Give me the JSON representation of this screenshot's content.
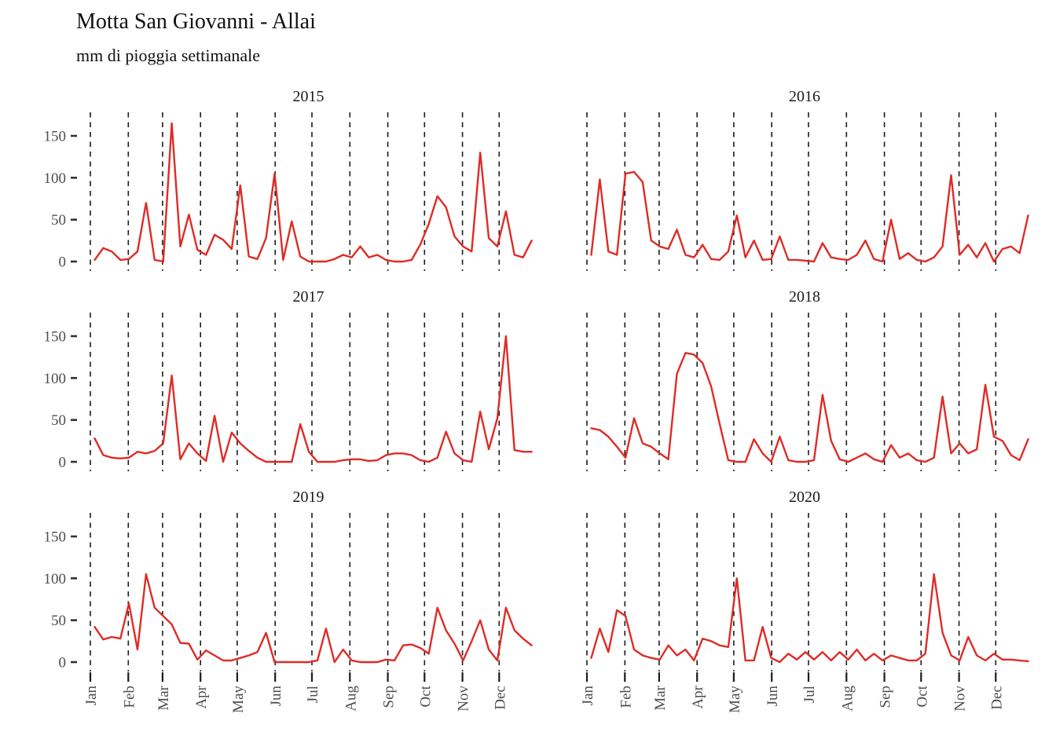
{
  "header": {
    "title": "Motta San Giovanni - Allai",
    "subtitle": "mm di pioggia settimanale"
  },
  "chart_data": {
    "type": "line",
    "title": "Motta San Giovanni - Allai",
    "subtitle": "mm di pioggia settimanale",
    "ylabel": "",
    "xlabel": "",
    "unit": "mm per week",
    "grid": "dashed vertical line at each month start",
    "legend": "none",
    "ylim": [
      0,
      170
    ],
    "y_ticks": [
      0,
      50,
      100,
      150
    ],
    "x_tick_labels": [
      "Jan",
      "Feb",
      "Mar",
      "Apr",
      "May",
      "Jun",
      "Jul",
      "Aug",
      "Sep",
      "Oct",
      "Nov",
      "Dec"
    ],
    "month_start_days": [
      0,
      31,
      59,
      90,
      120,
      151,
      181,
      212,
      243,
      273,
      304,
      334
    ],
    "colors": {
      "line": "#DE2C26",
      "grid": "#1b1b1b",
      "axis_text": "#4d4d4d",
      "tick": "#333333",
      "facet_title": "#1a1a1a",
      "background": "#ffffff"
    },
    "facets": [
      {
        "year": "2015",
        "values": [
          2,
          16,
          12,
          2,
          3,
          12,
          70,
          2,
          0,
          165,
          18,
          56,
          14,
          8,
          32,
          26,
          15,
          91,
          6,
          3,
          28,
          105,
          2,
          48,
          6,
          0,
          0,
          0,
          3,
          8,
          5,
          18,
          5,
          8,
          2,
          0,
          0,
          2,
          20,
          45,
          78,
          65,
          30,
          18,
          12,
          130,
          28,
          18,
          60,
          8,
          5,
          25
        ]
      },
      {
        "year": "2016",
        "values": [
          8,
          98,
          12,
          8,
          105,
          107,
          95,
          25,
          18,
          15,
          38,
          8,
          5,
          20,
          3,
          2,
          12,
          55,
          5,
          25,
          2,
          3,
          30,
          2,
          2,
          1,
          0,
          22,
          5,
          3,
          2,
          8,
          25,
          3,
          0,
          50,
          3,
          10,
          2,
          0,
          5,
          18,
          103,
          8,
          20,
          5,
          22,
          0,
          15,
          18,
          10,
          55
        ]
      },
      {
        "year": "2017",
        "values": [
          28,
          8,
          5,
          4,
          5,
          12,
          10,
          13,
          22,
          103,
          3,
          22,
          10,
          1,
          55,
          0,
          35,
          22,
          13,
          5,
          0,
          0,
          0,
          0,
          45,
          12,
          0,
          0,
          0,
          2,
          3,
          3,
          1,
          2,
          8,
          10,
          10,
          8,
          2,
          0,
          5,
          36,
          10,
          2,
          0,
          60,
          15,
          52,
          150,
          14,
          12,
          12
        ]
      },
      {
        "year": "2018",
        "values": [
          40,
          38,
          30,
          18,
          5,
          52,
          22,
          18,
          10,
          3,
          105,
          130,
          128,
          118,
          90,
          45,
          2,
          0,
          0,
          27,
          10,
          0,
          30,
          2,
          0,
          0,
          2,
          80,
          25,
          3,
          0,
          5,
          10,
          3,
          0,
          20,
          5,
          10,
          2,
          0,
          5,
          78,
          10,
          22,
          10,
          15,
          92,
          30,
          25,
          8,
          2,
          27
        ]
      },
      {
        "year": "2019",
        "values": [
          42,
          27,
          30,
          28,
          70,
          15,
          105,
          65,
          55,
          45,
          23,
          22,
          3,
          14,
          8,
          2,
          2,
          5,
          8,
          12,
          35,
          0,
          0,
          0,
          0,
          0,
          2,
          40,
          0,
          15,
          2,
          0,
          0,
          0,
          3,
          2,
          20,
          21,
          17,
          10,
          65,
          38,
          22,
          2,
          25,
          50,
          15,
          2,
          65,
          38,
          28,
          20
        ]
      },
      {
        "year": "2020",
        "values": [
          5,
          40,
          12,
          62,
          55,
          15,
          8,
          5,
          3,
          20,
          8,
          15,
          2,
          28,
          25,
          20,
          18,
          100,
          2,
          2,
          42,
          5,
          0,
          10,
          3,
          12,
          3,
          12,
          2,
          12,
          3,
          15,
          2,
          10,
          2,
          8,
          5,
          2,
          2,
          10,
          105,
          35,
          8,
          2,
          30,
          8,
          2,
          10,
          3,
          3,
          2,
          1
        ]
      }
    ]
  }
}
